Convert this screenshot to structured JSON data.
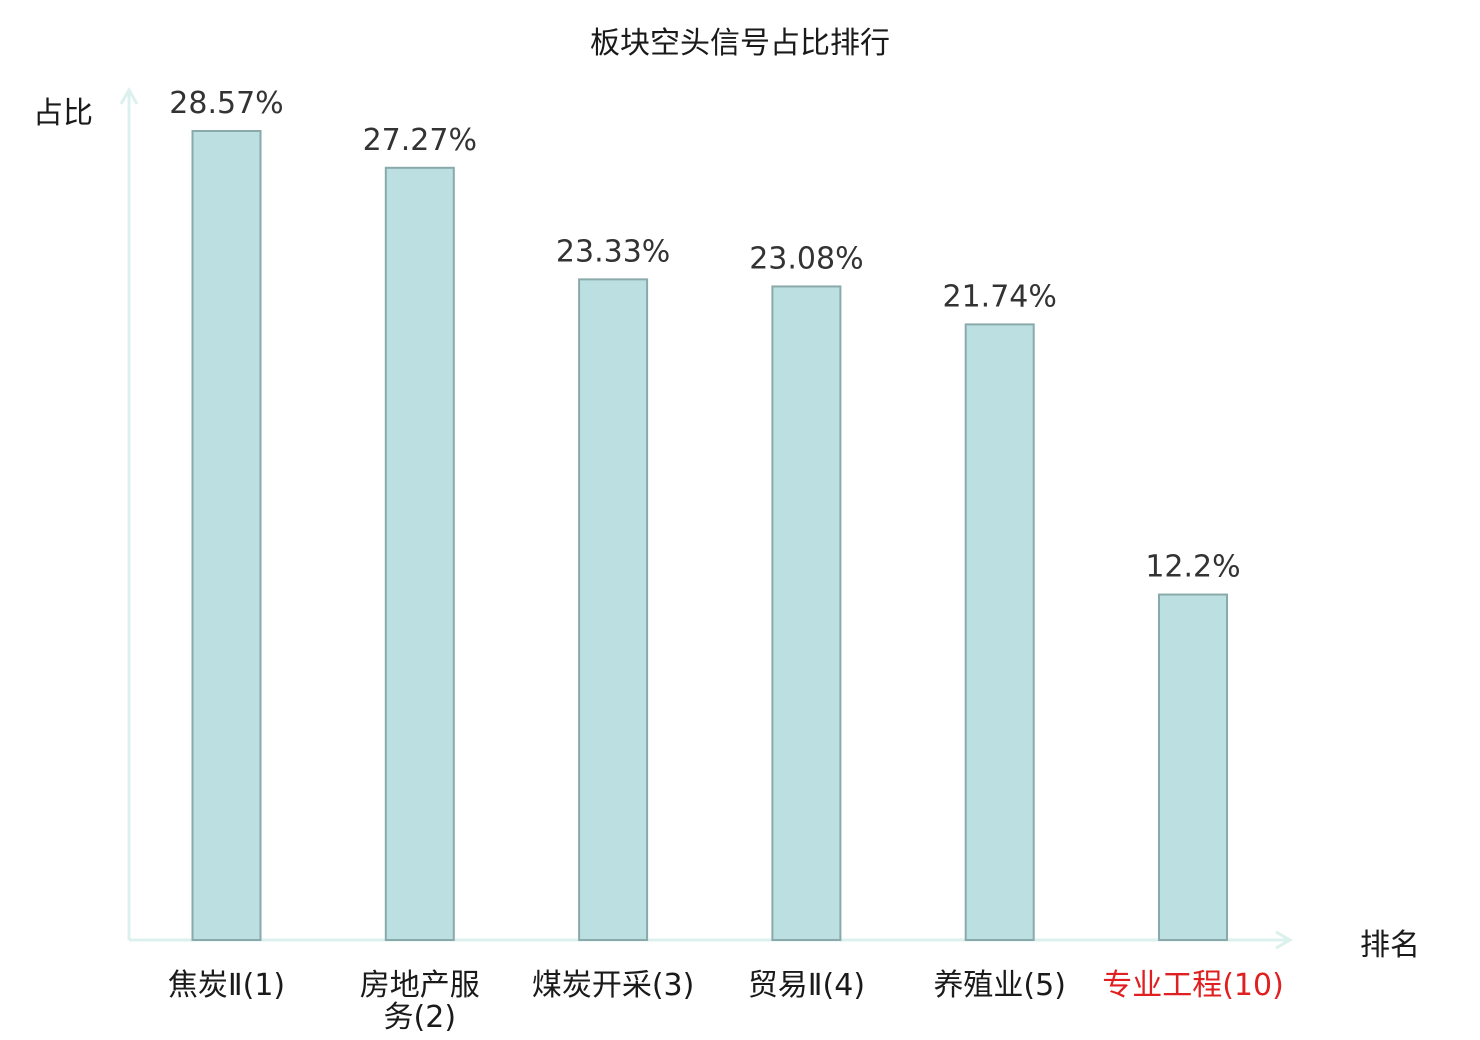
{
  "chart_data": {
    "type": "bar",
    "title": "板块空头信号占比排行",
    "ylabel": "占比",
    "xlabel": "排名",
    "categories": [
      {
        "name": "焦炭Ⅱ",
        "rank": "(1)",
        "highlight": false
      },
      {
        "name": "房地产服务",
        "rank": "(2)",
        "highlight": false
      },
      {
        "name": "煤炭开采",
        "rank": "(3)",
        "highlight": false
      },
      {
        "name": "贸易Ⅱ",
        "rank": "(4)",
        "highlight": false
      },
      {
        "name": "养殖业",
        "rank": "(5)",
        "highlight": false
      },
      {
        "name": "专业工程",
        "rank": "(10)",
        "highlight": true
      }
    ],
    "values": [
      28.57,
      27.27,
      23.33,
      23.08,
      21.74,
      12.2
    ],
    "value_labels": [
      "28.57%",
      "27.27%",
      "23.33%",
      "23.08%",
      "21.74%",
      "12.2%"
    ],
    "ylim": [
      0,
      30
    ],
    "grid": false,
    "colors": {
      "bar_fill": "#bce0e2",
      "bar_stroke": "#8aa9ab",
      "axis": "#dcf0ee",
      "text": "#1a1a1a",
      "value_text": "#333333",
      "highlight_text": "#e02020"
    }
  }
}
